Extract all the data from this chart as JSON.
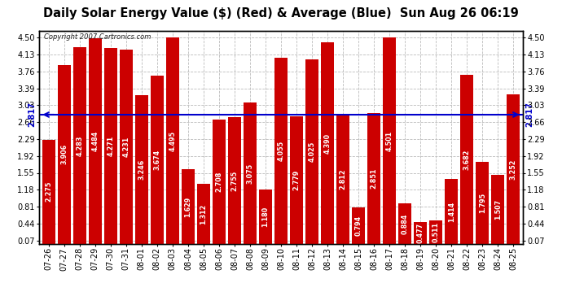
{
  "title": "Daily Solar Energy Value ($) (Red) & Average (Blue)  Sun Aug 26 06:19",
  "copyright": "Copyright 2007 Cartronics.com",
  "average": 2.817,
  "categories": [
    "07-26",
    "07-27",
    "07-28",
    "07-29",
    "07-30",
    "07-31",
    "08-01",
    "08-02",
    "08-03",
    "08-04",
    "08-05",
    "08-06",
    "08-07",
    "08-08",
    "08-09",
    "08-10",
    "08-11",
    "08-12",
    "08-13",
    "08-14",
    "08-15",
    "08-16",
    "08-17",
    "08-18",
    "08-19",
    "08-20",
    "08-21",
    "08-22",
    "08-23",
    "08-24",
    "08-25"
  ],
  "values": [
    2.275,
    3.906,
    4.283,
    4.484,
    4.271,
    4.231,
    3.246,
    3.674,
    4.495,
    1.629,
    1.312,
    2.708,
    2.755,
    3.075,
    1.18,
    4.055,
    2.779,
    4.025,
    4.39,
    2.812,
    0.794,
    2.851,
    4.501,
    0.884,
    0.477,
    0.511,
    1.414,
    3.682,
    1.795,
    1.507,
    3.252
  ],
  "bar_color": "#cc0000",
  "avg_line_color": "#0000cc",
  "bg_color": "#ffffff",
  "plot_bg_color": "#ffffff",
  "grid_color": "#bbbbbb",
  "yticks": [
    0.07,
    0.44,
    0.81,
    1.18,
    1.55,
    1.92,
    2.29,
    2.66,
    3.03,
    3.39,
    3.76,
    4.13,
    4.5
  ],
  "ylim": [
    0.0,
    4.65
  ],
  "title_fontsize": 10.5,
  "tick_fontsize": 7.0,
  "value_fontsize": 5.8
}
